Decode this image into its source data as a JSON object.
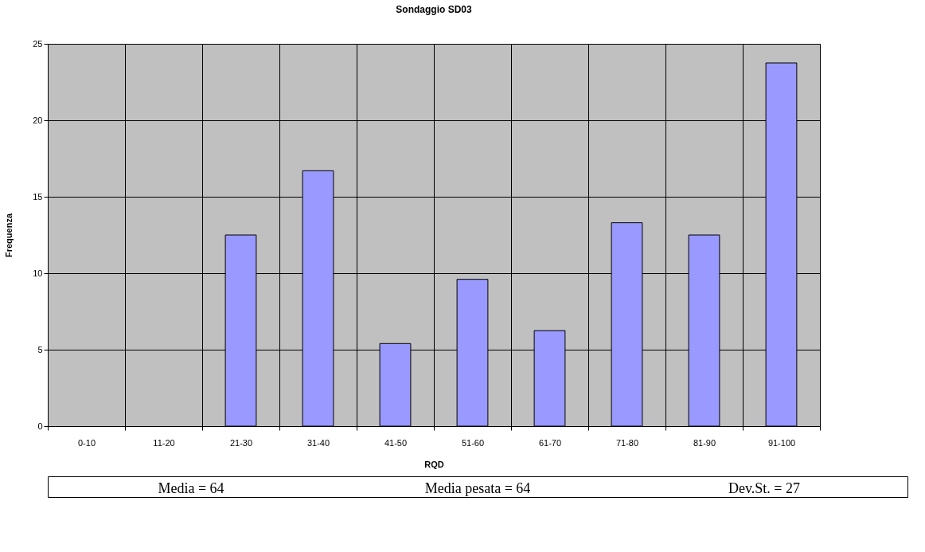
{
  "chart_data": {
    "type": "bar",
    "title": "Sondaggio SD03",
    "xlabel": "RQD",
    "ylabel": "Frequenza",
    "categories": [
      "0-10",
      "11-20",
      "21-30",
      "31-40",
      "41-50",
      "51-60",
      "61-70",
      "71-80",
      "81-90",
      "91-100"
    ],
    "values": [
      0,
      0,
      12.5,
      16.7,
      5.4,
      9.6,
      6.25,
      13.3,
      12.5,
      23.75
    ],
    "color": "#9999ff",
    "ylim": [
      0,
      25
    ],
    "yticks": [
      0,
      5,
      10,
      15,
      20,
      25
    ],
    "grid": true,
    "annotations": [
      "Media = 64",
      "Media pesata = 64",
      "Dev.St. = 27"
    ]
  }
}
